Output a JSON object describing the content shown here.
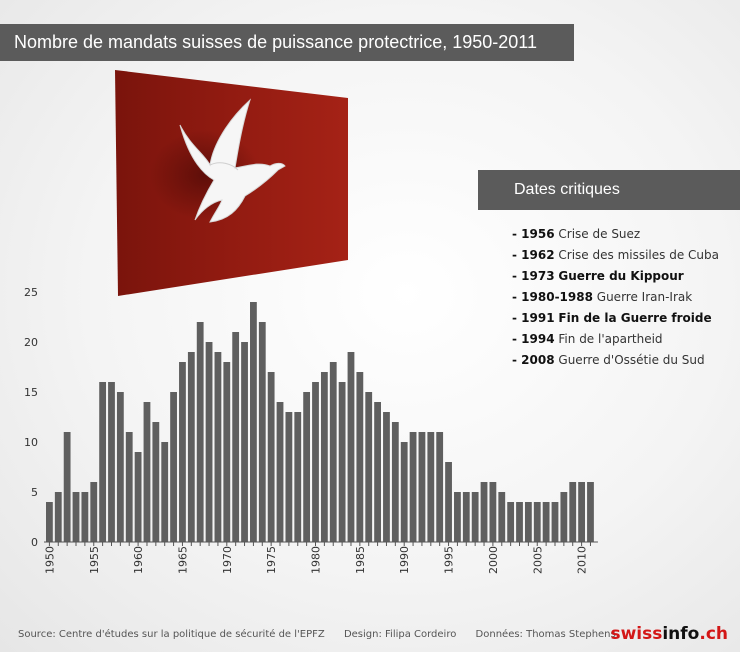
{
  "title": "Nombre de mandats suisses de puissance protectrice, 1950-2011",
  "dates_panel": {
    "header": "Dates critiques",
    "items": [
      {
        "prefix": "- ",
        "year": "1956",
        "event": "Crise de Suez"
      },
      {
        "prefix": "- ",
        "year": "1962",
        "event": "Crise des missiles de Cuba"
      },
      {
        "prefix": "- ",
        "year": "1973",
        "event": "Guerre du Kippour"
      },
      {
        "prefix": "- ",
        "year": "1980-1988",
        "event": "Guerre Iran-Irak"
      },
      {
        "prefix": "- ",
        "year": "1991",
        "event": "Fin de la Guerre froide"
      },
      {
        "prefix": "- ",
        "year": "1994",
        "event": "Fin de l'apartheid"
      },
      {
        "prefix": "- ",
        "year": "2008",
        "event": "Guerre d'Ossétie du Sud"
      }
    ]
  },
  "footer": {
    "source": "Source: Centre d'études sur la politique de sécurité de l'EPFZ",
    "design": "Design: Filipa Cordeiro",
    "data": "Données: Thomas Stephens"
  },
  "logo": {
    "part1": "swiss",
    "part2": "info",
    "part3": ".ch"
  },
  "colors": {
    "bar": "#5f5f5f",
    "flag": "#8e1a10",
    "title_bg": "#5b5b5b",
    "logo_accent": "#d31717"
  },
  "chart_data": {
    "type": "bar",
    "title": "Nombre de mandats suisses de puissance protectrice, 1950-2011",
    "xlabel": "",
    "ylabel": "",
    "ylim": [
      0,
      25
    ],
    "yticks": [
      0,
      5,
      10,
      15,
      20,
      25
    ],
    "xticks": [
      1950,
      1955,
      1960,
      1965,
      1970,
      1975,
      1980,
      1985,
      1990,
      1995,
      2000,
      2005,
      2010
    ],
    "grid": false,
    "categories": [
      1950,
      1951,
      1952,
      1953,
      1954,
      1955,
      1956,
      1957,
      1958,
      1959,
      1960,
      1961,
      1962,
      1963,
      1964,
      1965,
      1966,
      1967,
      1968,
      1969,
      1970,
      1971,
      1972,
      1973,
      1974,
      1975,
      1976,
      1977,
      1978,
      1979,
      1980,
      1981,
      1982,
      1983,
      1984,
      1985,
      1986,
      1987,
      1988,
      1989,
      1990,
      1991,
      1992,
      1993,
      1994,
      1995,
      1996,
      1997,
      1998,
      1999,
      2000,
      2001,
      2002,
      2003,
      2004,
      2005,
      2006,
      2007,
      2008,
      2009,
      2010,
      2011
    ],
    "values": [
      4,
      5,
      11,
      5,
      5,
      6,
      16,
      16,
      15,
      11,
      9,
      14,
      12,
      10,
      15,
      18,
      19,
      22,
      20,
      19,
      18,
      21,
      20,
      24,
      22,
      17,
      14,
      13,
      13,
      15,
      16,
      17,
      18,
      16,
      19,
      17,
      15,
      14,
      13,
      12,
      10,
      11,
      11,
      11,
      11,
      8,
      5,
      5,
      5,
      6,
      6,
      5,
      4,
      4,
      4,
      4,
      4,
      4,
      5,
      6,
      6,
      6
    ]
  }
}
